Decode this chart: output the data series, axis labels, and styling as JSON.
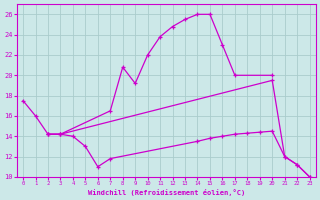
{
  "xlabel": "Windchill (Refroidissement éolien,°C)",
  "bg_color": "#cce8e8",
  "line_color": "#cc00cc",
  "grid_color": "#aacccc",
  "xlim": [
    -0.5,
    23.5
  ],
  "ylim": [
    10,
    27
  ],
  "yticks": [
    10,
    12,
    14,
    16,
    18,
    20,
    22,
    24,
    26
  ],
  "xticks": [
    0,
    1,
    2,
    3,
    4,
    5,
    6,
    7,
    8,
    9,
    10,
    11,
    12,
    13,
    14,
    15,
    16,
    17,
    18,
    19,
    20,
    21,
    22,
    23
  ],
  "lines": [
    {
      "x": [
        0,
        1,
        2,
        3,
        7,
        8,
        9,
        10,
        11,
        12,
        13,
        14,
        15,
        16,
        17,
        20
      ],
      "y": [
        17.5,
        16.0,
        14.2,
        14.2,
        16.5,
        20.8,
        19.2,
        22.0,
        23.8,
        24.8,
        25.5,
        26.0,
        26.0,
        23.0,
        20.0,
        20.0
      ]
    },
    {
      "x": [
        2,
        3,
        4,
        5,
        6,
        7,
        14,
        15,
        16,
        17,
        18,
        19,
        20,
        21,
        22,
        23
      ],
      "y": [
        14.2,
        14.2,
        14.0,
        13.0,
        11.0,
        11.8,
        13.5,
        13.8,
        14.0,
        14.2,
        14.3,
        14.4,
        14.5,
        12.0,
        11.2,
        10.0
      ]
    },
    {
      "x": [
        2,
        3,
        20,
        21,
        22,
        23
      ],
      "y": [
        14.2,
        14.2,
        19.5,
        12.0,
        11.2,
        10.0
      ]
    }
  ]
}
